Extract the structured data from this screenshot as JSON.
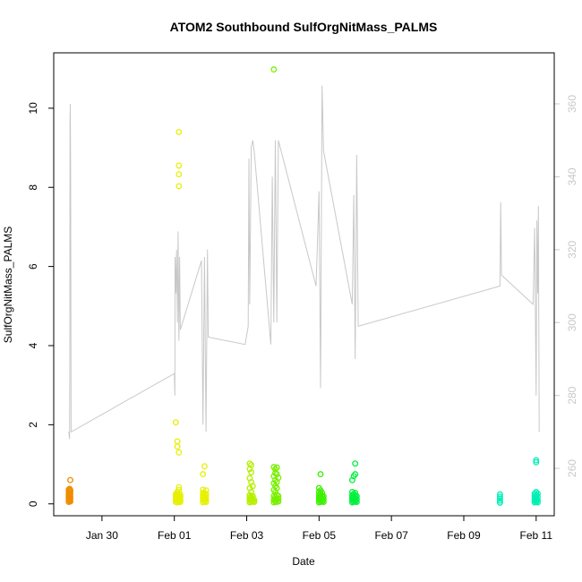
{
  "chart_data": {
    "type": "scatter",
    "title": "ATOM2 Southbound SulfOrgNitMass_PALMS",
    "xlabel": "Date",
    "ylabel": "SulfOrgNitMass_PALMS",
    "xlim": [
      "2017-01-28T16:00",
      "2017-02-11T12:00"
    ],
    "x_ticks": [
      {
        "date": "2017-01-30",
        "label": "Jan 30"
      },
      {
        "date": "2017-02-01",
        "label": "Feb 01"
      },
      {
        "date": "2017-02-03",
        "label": "Feb 03"
      },
      {
        "date": "2017-02-05",
        "label": "Feb 05"
      },
      {
        "date": "2017-02-07",
        "label": "Feb 07"
      },
      {
        "date": "2017-02-09",
        "label": "Feb 09"
      },
      {
        "date": "2017-02-11",
        "label": "Feb 11"
      }
    ],
    "ylim": [
      -0.3,
      11.4
    ],
    "y_ticks": [
      0,
      2,
      4,
      6,
      8,
      10
    ],
    "y2lim": [
      247,
      374
    ],
    "y2_ticks": [
      260,
      280,
      300,
      320,
      340,
      360
    ],
    "grid": false,
    "series": [
      {
        "color": "#f08c00",
        "points": [
          [
            "2017-01-29T02:00",
            0.05
          ],
          [
            "2017-01-29T02:00",
            0.1
          ],
          [
            "2017-01-29T02:00",
            0.14
          ],
          [
            "2017-01-29T02:00",
            0.18
          ],
          [
            "2017-01-29T02:00",
            0.22
          ],
          [
            "2017-01-29T02:00",
            0.27
          ],
          [
            "2017-01-29T02:00",
            0.32
          ],
          [
            "2017-01-29T02:00",
            0.36
          ],
          [
            "2017-01-29T02:30",
            0.08
          ],
          [
            "2017-01-29T02:30",
            0.13
          ],
          [
            "2017-01-29T02:30",
            0.2
          ],
          [
            "2017-01-29T02:30",
            0.26
          ],
          [
            "2017-01-29T02:30",
            0.31
          ],
          [
            "2017-01-29T02:30",
            0.38
          ],
          [
            "2017-01-29T03:00",
            0.06
          ],
          [
            "2017-01-29T03:00",
            0.12
          ],
          [
            "2017-01-29T03:00",
            0.17
          ],
          [
            "2017-01-29T03:00",
            0.24
          ],
          [
            "2017-01-29T03:00",
            0.3
          ],
          [
            "2017-01-29T03:00",
            0.35
          ],
          [
            "2017-01-29T03:00",
            0.6
          ]
        ]
      },
      {
        "color": "#e6f000",
        "points": [
          [
            "2017-02-01T01:00",
            0.05
          ],
          [
            "2017-02-01T01:00",
            0.1
          ],
          [
            "2017-02-01T01:00",
            0.15
          ],
          [
            "2017-02-01T01:00",
            0.2
          ],
          [
            "2017-02-01T01:00",
            0.25
          ],
          [
            "2017-02-01T01:00",
            2.06
          ],
          [
            "2017-02-01T02:00",
            0.04
          ],
          [
            "2017-02-01T02:00",
            0.09
          ],
          [
            "2017-02-01T02:00",
            0.13
          ],
          [
            "2017-02-01T02:00",
            0.18
          ],
          [
            "2017-02-01T02:00",
            0.24
          ],
          [
            "2017-02-01T02:00",
            0.3
          ],
          [
            "2017-02-01T02:00",
            1.45
          ],
          [
            "2017-02-01T02:00",
            1.58
          ],
          [
            "2017-02-01T03:00",
            0.06
          ],
          [
            "2017-02-01T03:00",
            0.12
          ],
          [
            "2017-02-01T03:00",
            0.18
          ],
          [
            "2017-02-01T03:00",
            0.26
          ],
          [
            "2017-02-01T03:00",
            0.35
          ],
          [
            "2017-02-01T03:00",
            0.42
          ],
          [
            "2017-02-01T03:00",
            1.3
          ],
          [
            "2017-02-01T03:00",
            8.03
          ],
          [
            "2017-02-01T03:00",
            8.33
          ],
          [
            "2017-02-01T03:00",
            8.55
          ],
          [
            "2017-02-01T03:00",
            9.4
          ],
          [
            "2017-02-01T04:00",
            0.05
          ],
          [
            "2017-02-01T04:00",
            0.11
          ],
          [
            "2017-02-01T04:00",
            0.17
          ],
          [
            "2017-02-01T04:00",
            0.23
          ],
          [
            "2017-02-01T19:00",
            0.04
          ],
          [
            "2017-02-01T19:00",
            0.1
          ],
          [
            "2017-02-01T19:00",
            0.16
          ],
          [
            "2017-02-01T19:00",
            0.22
          ],
          [
            "2017-02-01T19:00",
            0.28
          ],
          [
            "2017-02-01T19:00",
            0.36
          ],
          [
            "2017-02-01T19:00",
            0.75
          ],
          [
            "2017-02-01T20:00",
            0.06
          ],
          [
            "2017-02-01T20:00",
            0.12
          ],
          [
            "2017-02-01T20:00",
            0.19
          ],
          [
            "2017-02-01T20:00",
            0.27
          ],
          [
            "2017-02-01T20:00",
            0.95
          ],
          [
            "2017-02-01T21:00",
            0.05
          ],
          [
            "2017-02-01T21:00",
            0.11
          ],
          [
            "2017-02-01T21:00",
            0.18
          ],
          [
            "2017-02-01T21:00",
            0.25
          ],
          [
            "2017-02-01T21:00",
            0.34
          ]
        ]
      },
      {
        "color": "#b4f000",
        "points": [
          [
            "2017-02-03T02:00",
            0.04
          ],
          [
            "2017-02-03T02:00",
            0.1
          ],
          [
            "2017-02-03T02:00",
            0.16
          ],
          [
            "2017-02-03T02:00",
            0.22
          ],
          [
            "2017-02-03T02:00",
            0.4
          ],
          [
            "2017-02-03T02:00",
            0.65
          ],
          [
            "2017-02-03T02:00",
            0.88
          ],
          [
            "2017-02-03T02:00",
            1.02
          ],
          [
            "2017-02-03T03:00",
            0.05
          ],
          [
            "2017-02-03T03:00",
            0.12
          ],
          [
            "2017-02-03T03:00",
            0.19
          ],
          [
            "2017-02-03T03:00",
            0.3
          ],
          [
            "2017-02-03T03:00",
            0.55
          ],
          [
            "2017-02-03T03:00",
            0.8
          ],
          [
            "2017-02-03T03:00",
            0.98
          ],
          [
            "2017-02-03T04:00",
            0.06
          ],
          [
            "2017-02-03T04:00",
            0.13
          ],
          [
            "2017-02-03T04:00",
            0.2
          ],
          [
            "2017-02-03T04:00",
            0.45
          ],
          [
            "2017-02-03T05:00",
            0.05
          ],
          [
            "2017-02-03T05:00",
            0.1
          ]
        ]
      },
      {
        "color": "#78f000",
        "points": [
          [
            "2017-02-03T18:00",
            0.04
          ],
          [
            "2017-02-03T18:00",
            0.1
          ],
          [
            "2017-02-03T18:00",
            0.2
          ],
          [
            "2017-02-03T18:00",
            0.35
          ],
          [
            "2017-02-03T18:00",
            0.52
          ],
          [
            "2017-02-03T18:00",
            0.7
          ],
          [
            "2017-02-03T18:00",
            0.93
          ],
          [
            "2017-02-03T18:00",
            10.98
          ],
          [
            "2017-02-03T19:00",
            0.06
          ],
          [
            "2017-02-03T19:00",
            0.12
          ],
          [
            "2017-02-03T19:00",
            0.18
          ],
          [
            "2017-02-03T19:00",
            0.3
          ],
          [
            "2017-02-03T19:00",
            0.45
          ],
          [
            "2017-02-03T19:00",
            0.6
          ],
          [
            "2017-02-03T19:00",
            0.78
          ],
          [
            "2017-02-03T19:00",
            0.88
          ],
          [
            "2017-02-03T20:00",
            0.05
          ],
          [
            "2017-02-03T20:00",
            0.11
          ],
          [
            "2017-02-03T20:00",
            0.22
          ],
          [
            "2017-02-03T20:00",
            0.4
          ],
          [
            "2017-02-03T20:00",
            0.55
          ],
          [
            "2017-02-03T20:00",
            0.75
          ],
          [
            "2017-02-03T20:00",
            0.92
          ],
          [
            "2017-02-03T21:00",
            0.06
          ],
          [
            "2017-02-03T21:00",
            0.13
          ],
          [
            "2017-02-03T21:00",
            0.2
          ],
          [
            "2017-02-03T21:00",
            0.66
          ]
        ]
      },
      {
        "color": "#3cf000",
        "points": [
          [
            "2017-02-05T00:00",
            0.04
          ],
          [
            "2017-02-05T00:00",
            0.1
          ],
          [
            "2017-02-05T00:00",
            0.16
          ],
          [
            "2017-02-05T00:00",
            0.22
          ],
          [
            "2017-02-05T00:00",
            0.3
          ],
          [
            "2017-02-05T00:00",
            0.4
          ],
          [
            "2017-02-05T01:00",
            0.05
          ],
          [
            "2017-02-05T01:00",
            0.12
          ],
          [
            "2017-02-05T01:00",
            0.18
          ],
          [
            "2017-02-05T01:00",
            0.25
          ],
          [
            "2017-02-05T01:00",
            0.34
          ],
          [
            "2017-02-05T01:00",
            0.75
          ],
          [
            "2017-02-05T02:00",
            0.06
          ],
          [
            "2017-02-05T02:00",
            0.11
          ],
          [
            "2017-02-05T02:00",
            0.2
          ],
          [
            "2017-02-05T02:00",
            0.28
          ],
          [
            "2017-02-05T03:00",
            0.05
          ],
          [
            "2017-02-05T03:00",
            0.12
          ],
          [
            "2017-02-05T03:00",
            0.19
          ]
        ]
      },
      {
        "color": "#00f03c",
        "points": [
          [
            "2017-02-05T22:00",
            0.04
          ],
          [
            "2017-02-05T22:00",
            0.1
          ],
          [
            "2017-02-05T22:00",
            0.16
          ],
          [
            "2017-02-05T22:00",
            0.22
          ],
          [
            "2017-02-05T22:00",
            0.3
          ],
          [
            "2017-02-05T22:00",
            0.6
          ],
          [
            "2017-02-05T23:00",
            0.05
          ],
          [
            "2017-02-05T23:00",
            0.12
          ],
          [
            "2017-02-05T23:00",
            0.18
          ],
          [
            "2017-02-05T23:00",
            0.25
          ],
          [
            "2017-02-05T23:00",
            0.7
          ],
          [
            "2017-02-06T00:00",
            0.06
          ],
          [
            "2017-02-06T00:00",
            0.11
          ],
          [
            "2017-02-06T00:00",
            0.2
          ],
          [
            "2017-02-06T00:00",
            0.28
          ],
          [
            "2017-02-06T00:00",
            0.75
          ],
          [
            "2017-02-06T00:00",
            1.02
          ],
          [
            "2017-02-06T01:00",
            0.05
          ],
          [
            "2017-02-06T01:00",
            0.12
          ],
          [
            "2017-02-06T01:00",
            0.19
          ]
        ]
      },
      {
        "color": "#00f0b4",
        "points": [
          [
            "2017-02-10T00:00",
            0.03
          ],
          [
            "2017-02-10T00:00",
            0.08
          ],
          [
            "2017-02-10T00:00",
            0.13
          ],
          [
            "2017-02-10T00:00",
            0.18
          ],
          [
            "2017-02-10T00:00",
            0.24
          ],
          [
            "2017-02-10T23:00",
            0.04
          ],
          [
            "2017-02-10T23:00",
            0.09
          ],
          [
            "2017-02-10T23:00",
            0.14
          ],
          [
            "2017-02-10T23:00",
            0.2
          ],
          [
            "2017-02-10T23:00",
            0.26
          ],
          [
            "2017-02-11T00:00",
            0.05
          ],
          [
            "2017-02-11T00:00",
            0.1
          ],
          [
            "2017-02-11T00:00",
            0.16
          ],
          [
            "2017-02-11T00:00",
            0.22
          ],
          [
            "2017-02-11T00:00",
            0.3
          ],
          [
            "2017-02-11T00:00",
            1.05
          ],
          [
            "2017-02-11T00:00",
            1.1
          ],
          [
            "2017-02-11T01:00",
            0.04
          ],
          [
            "2017-02-11T01:00",
            0.1
          ],
          [
            "2017-02-11T01:00",
            0.18
          ],
          [
            "2017-02-11T01:00",
            0.26
          ]
        ]
      }
    ],
    "secondary_line": {
      "color": "#c8c8c8",
      "points": [
        [
          "2017-01-29T02:00",
          270
        ],
        [
          "2017-01-29T02:30",
          268
        ],
        [
          "2017-01-29T02:40",
          290
        ],
        [
          "2017-01-29T02:50",
          355
        ],
        [
          "2017-01-29T03:00",
          360
        ],
        [
          "2017-01-29T03:15",
          340
        ],
        [
          "2017-01-29T03:30",
          270
        ],
        [
          "2017-02-01T00:00",
          286
        ],
        [
          "2017-02-01T00:20",
          280
        ],
        [
          "2017-02-01T00:30",
          318
        ],
        [
          "2017-02-01T01:00",
          308
        ],
        [
          "2017-02-01T01:30",
          320
        ],
        [
          "2017-02-01T02:00",
          300
        ],
        [
          "2017-02-01T02:30",
          325
        ],
        [
          "2017-02-01T03:00",
          295
        ],
        [
          "2017-02-01T03:30",
          318
        ],
        [
          "2017-02-01T04:00",
          298
        ],
        [
          "2017-02-01T18:00",
          317
        ],
        [
          "2017-02-01T19:00",
          272
        ],
        [
          "2017-02-01T20:00",
          318
        ],
        [
          "2017-02-01T21:00",
          270
        ],
        [
          "2017-02-01T22:00",
          320
        ],
        [
          "2017-02-01T22:30",
          296
        ],
        [
          "2017-02-02T23:00",
          294
        ],
        [
          "2017-02-03T01:00",
          299
        ],
        [
          "2017-02-03T01:30",
          345
        ],
        [
          "2017-02-03T02:00",
          305
        ],
        [
          "2017-02-03T03:00",
          348
        ],
        [
          "2017-02-03T04:00",
          350
        ],
        [
          "2017-02-03T05:00",
          347
        ],
        [
          "2017-02-03T16:00",
          294
        ],
        [
          "2017-02-03T17:00",
          340
        ],
        [
          "2017-02-03T18:00",
          300
        ],
        [
          "2017-02-03T19:00",
          350
        ],
        [
          "2017-02-03T20:00",
          300
        ],
        [
          "2017-02-03T21:00",
          350
        ],
        [
          "2017-02-04T22:00",
          310
        ],
        [
          "2017-02-05T00:00",
          336
        ],
        [
          "2017-02-05T01:00",
          282
        ],
        [
          "2017-02-05T02:00",
          365
        ],
        [
          "2017-02-05T03:00",
          347
        ],
        [
          "2017-02-05T22:00",
          305
        ],
        [
          "2017-02-05T23:00",
          335
        ],
        [
          "2017-02-06T00:00",
          290
        ],
        [
          "2017-02-06T01:00",
          346
        ],
        [
          "2017-02-06T02:00",
          299
        ],
        [
          "2017-02-10T00:00",
          310
        ],
        [
          "2017-02-10T00:30",
          333
        ],
        [
          "2017-02-10T01:00",
          313
        ],
        [
          "2017-02-10T22:00",
          305
        ],
        [
          "2017-02-10T23:00",
          326
        ],
        [
          "2017-02-11T00:00",
          280
        ],
        [
          "2017-02-11T00:30",
          328
        ],
        [
          "2017-02-11T01:00",
          308
        ],
        [
          "2017-02-11T01:30",
          332
        ],
        [
          "2017-02-11T02:00",
          270
        ]
      ]
    }
  }
}
